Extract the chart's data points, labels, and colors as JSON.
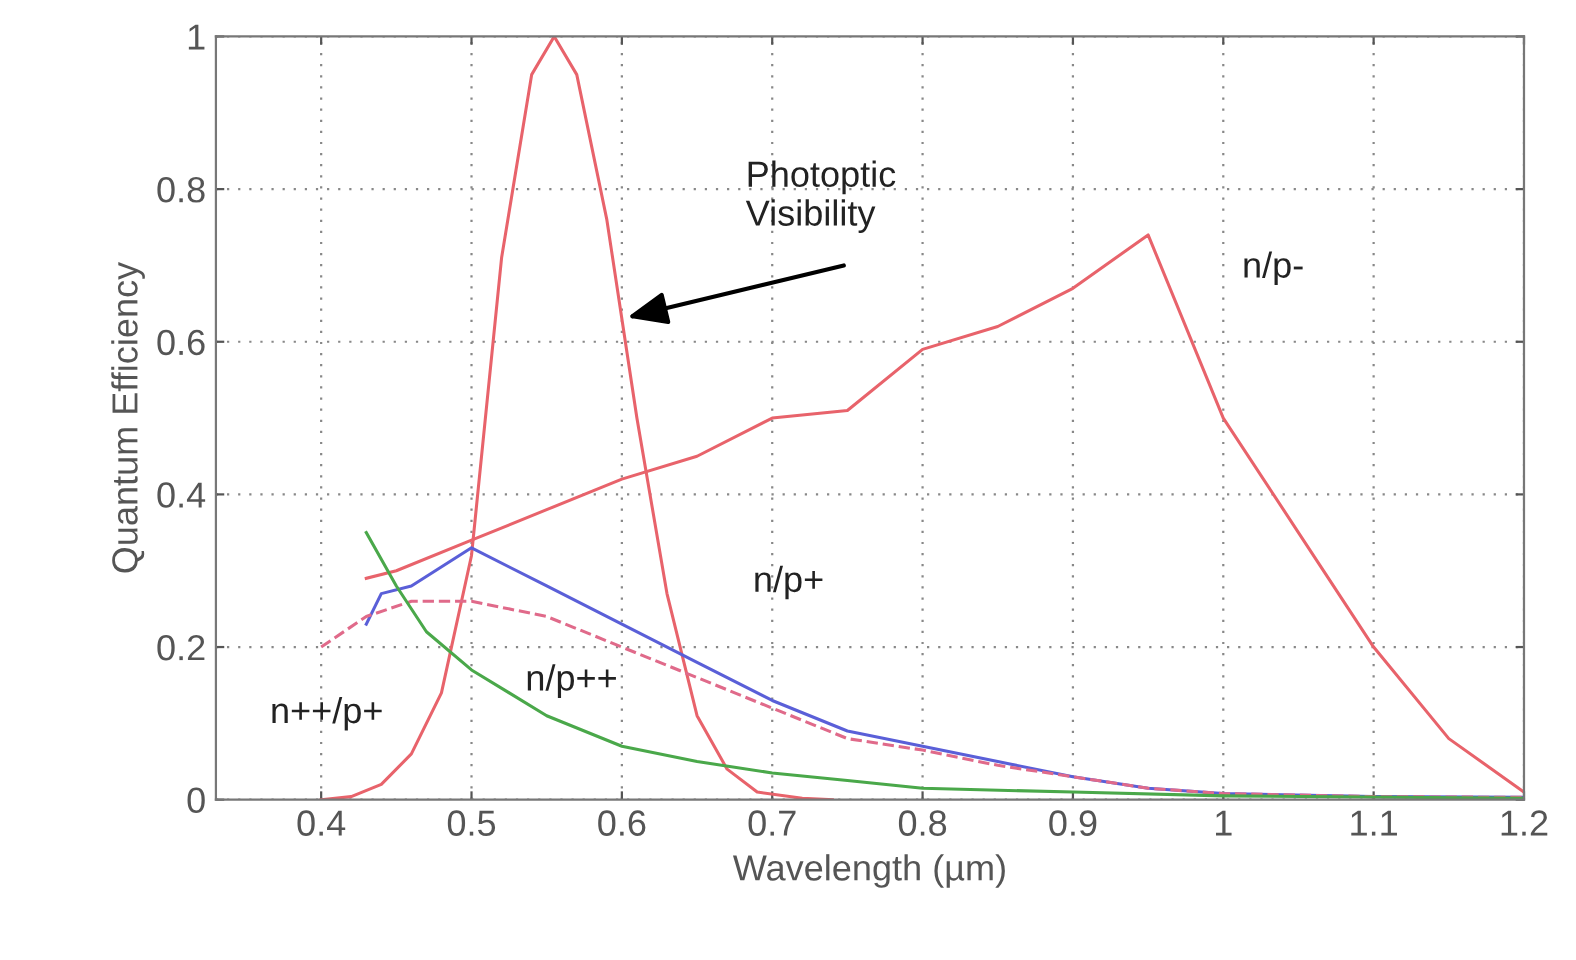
{
  "chart_data": {
    "type": "line",
    "xlabel": "Wavelength (µm)",
    "ylabel": "Quantum Efficiency",
    "xlim": [
      0.33,
      1.2
    ],
    "ylim": [
      0,
      1
    ],
    "xticks": [
      0.4,
      0.5,
      0.6,
      0.7,
      0.8,
      0.9,
      {
        "value": 1,
        "label": "1"
      },
      1.1,
      1.2
    ],
    "yticks": [
      0,
      0.2,
      0.4,
      0.6,
      0.8,
      {
        "value": 1,
        "label": "1"
      }
    ],
    "grid": true,
    "legend": false,
    "series": [
      {
        "color": "#e8636b",
        "line_style": "solid",
        "x": [
          0.4,
          0.42,
          0.44,
          0.46,
          0.48,
          0.5,
          0.52,
          0.54,
          0.555,
          0.57,
          0.59,
          0.61,
          0.63,
          0.65,
          0.67,
          0.69,
          0.72,
          0.74
        ],
        "values": [
          0,
          0.004,
          0.02,
          0.06,
          0.14,
          0.32,
          0.71,
          0.95,
          1.0,
          0.95,
          0.76,
          0.5,
          0.27,
          0.11,
          0.04,
          0.01,
          0.002,
          0
        ]
      },
      {
        "name": "n/p-",
        "color": "#e8636b",
        "line_style": "solid",
        "x": [
          0.43,
          0.45,
          0.5,
          0.55,
          0.6,
          0.65,
          0.7,
          0.75,
          0.8,
          0.85,
          0.9,
          0.95,
          1.0,
          1.05,
          1.1,
          1.15,
          1.2
        ],
        "values": [
          0.29,
          0.3,
          0.34,
          0.38,
          0.42,
          0.45,
          0.5,
          0.51,
          0.59,
          0.62,
          0.67,
          0.74,
          0.5,
          0.35,
          0.2,
          0.08,
          0.01
        ]
      },
      {
        "name": "n/p+",
        "color": "#5a5fd8",
        "line_style": "solid",
        "x": [
          0.43,
          0.44,
          0.46,
          0.5,
          0.55,
          0.6,
          0.65,
          0.7,
          0.75,
          0.8,
          0.85,
          0.9,
          0.95,
          1.0,
          1.1,
          1.2
        ],
        "values": [
          0.23,
          0.27,
          0.28,
          0.33,
          0.28,
          0.23,
          0.18,
          0.13,
          0.09,
          0.07,
          0.05,
          0.03,
          0.015,
          0.008,
          0.004,
          0.003
        ]
      },
      {
        "name": "n++/p+",
        "color": "#e06a8a",
        "line_style": "dashed",
        "x": [
          0.4,
          0.43,
          0.46,
          0.5,
          0.55,
          0.6,
          0.65,
          0.7,
          0.75,
          0.8,
          0.85,
          0.9,
          0.95,
          1.0,
          1.1,
          1.2
        ],
        "values": [
          0.2,
          0.24,
          0.26,
          0.26,
          0.24,
          0.2,
          0.16,
          0.12,
          0.08,
          0.065,
          0.045,
          0.03,
          0.015,
          0.008,
          0.004,
          0.003
        ]
      },
      {
        "name": "n/p++",
        "color": "#4aa84a",
        "line_style": "solid",
        "x": [
          0.43,
          0.45,
          0.47,
          0.5,
          0.55,
          0.6,
          0.65,
          0.7,
          0.75,
          0.8,
          0.9,
          1.0,
          1.2
        ],
        "values": [
          0.35,
          0.28,
          0.22,
          0.17,
          0.11,
          0.07,
          0.05,
          0.035,
          0.025,
          0.015,
          0.01,
          0.005,
          0.002
        ]
      }
    ],
    "annotations": [
      "Photoptic\nVisibility"
    ]
  }
}
